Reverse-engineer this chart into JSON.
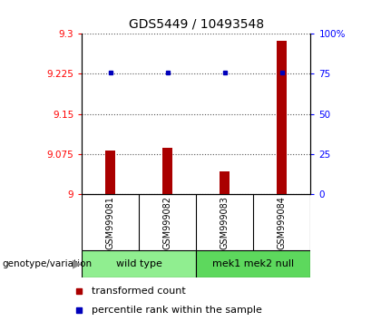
{
  "title": "GDS5449 / 10493548",
  "samples": [
    "GSM999081",
    "GSM999082",
    "GSM999083",
    "GSM999084"
  ],
  "red_values": [
    9.082,
    9.086,
    9.043,
    9.287
  ],
  "blue_values": [
    9.228,
    9.228,
    9.228,
    9.228
  ],
  "y_min": 9.0,
  "y_max": 9.3,
  "y_ticks": [
    9.0,
    9.075,
    9.15,
    9.225,
    9.3
  ],
  "y_ticks_labels": [
    "9",
    "9.075",
    "9.15",
    "9.225",
    "9.3"
  ],
  "right_y_ticks": [
    0,
    25,
    50,
    75,
    100
  ],
  "right_y_labels": [
    "0",
    "25",
    "50",
    "75",
    "100%"
  ],
  "groups": [
    {
      "label": "wild type",
      "indices": [
        0,
        1
      ],
      "color": "#90EE90"
    },
    {
      "label": "mek1 mek2 null",
      "indices": [
        2,
        3
      ],
      "color": "#5DD85D"
    }
  ],
  "group_label_prefix": "genotype/variation",
  "legend_red": "transformed count",
  "legend_blue": "percentile rank within the sample",
  "bar_color": "#AA0000",
  "dot_color": "#0000BB",
  "bar_width": 0.18,
  "bg_color": "#FFFFFF",
  "sample_box_color": "#CCCCCC",
  "dotted_line_color": "#555555"
}
